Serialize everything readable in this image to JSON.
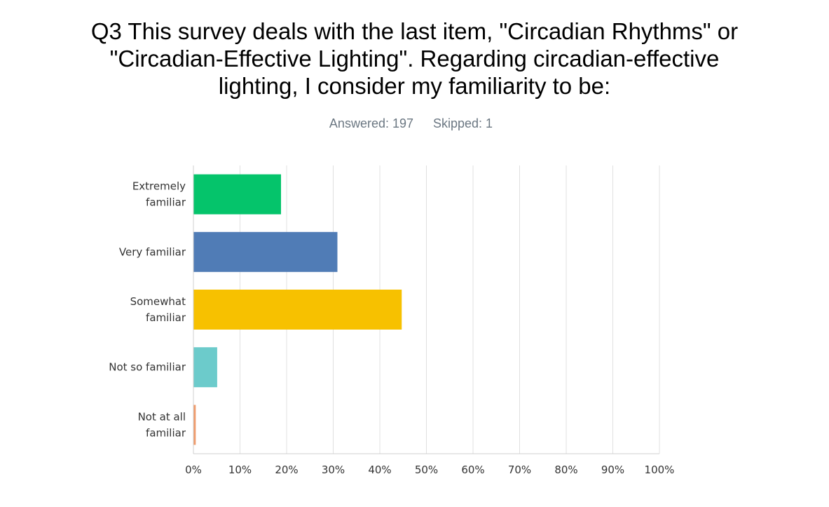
{
  "title_lines": [
    "Q3 This survey deals with the last item, \"Circadian Rhythms\" or",
    "\"Circadian-Effective Lighting\". Regarding circadian-effective",
    "lighting, I consider my familiarity to be:"
  ],
  "stats": {
    "answered": "Answered: 197",
    "skipped": "Skipped: 1"
  },
  "chart_data": {
    "type": "bar",
    "orientation": "horizontal",
    "title": "Q3 This survey deals with the last item, \"Circadian Rhythms\" or \"Circadian-Effective Lighting\". Regarding circadian-effective lighting, I consider my familiarity to be:",
    "categories": [
      [
        "Extremely",
        "familiar"
      ],
      [
        "Very familiar"
      ],
      [
        "Somewhat",
        "familiar"
      ],
      [
        "Not so familiar"
      ],
      [
        "Not at all",
        "familiar"
      ]
    ],
    "values": [
      18.8,
      30.9,
      44.7,
      5.1,
      0.5
    ],
    "colors": [
      "#05c46b",
      "#507cb6",
      "#f7c100",
      "#6ccbcb",
      "#f09b6b"
    ],
    "xticks": [
      "0%",
      "10%",
      "20%",
      "30%",
      "40%",
      "50%",
      "60%",
      "70%",
      "80%",
      "90%",
      "100%"
    ],
    "xlim": [
      0,
      100
    ],
    "grid": true,
    "grid_color": "#e0e0e0",
    "axis_color": "#cfcfcf"
  }
}
